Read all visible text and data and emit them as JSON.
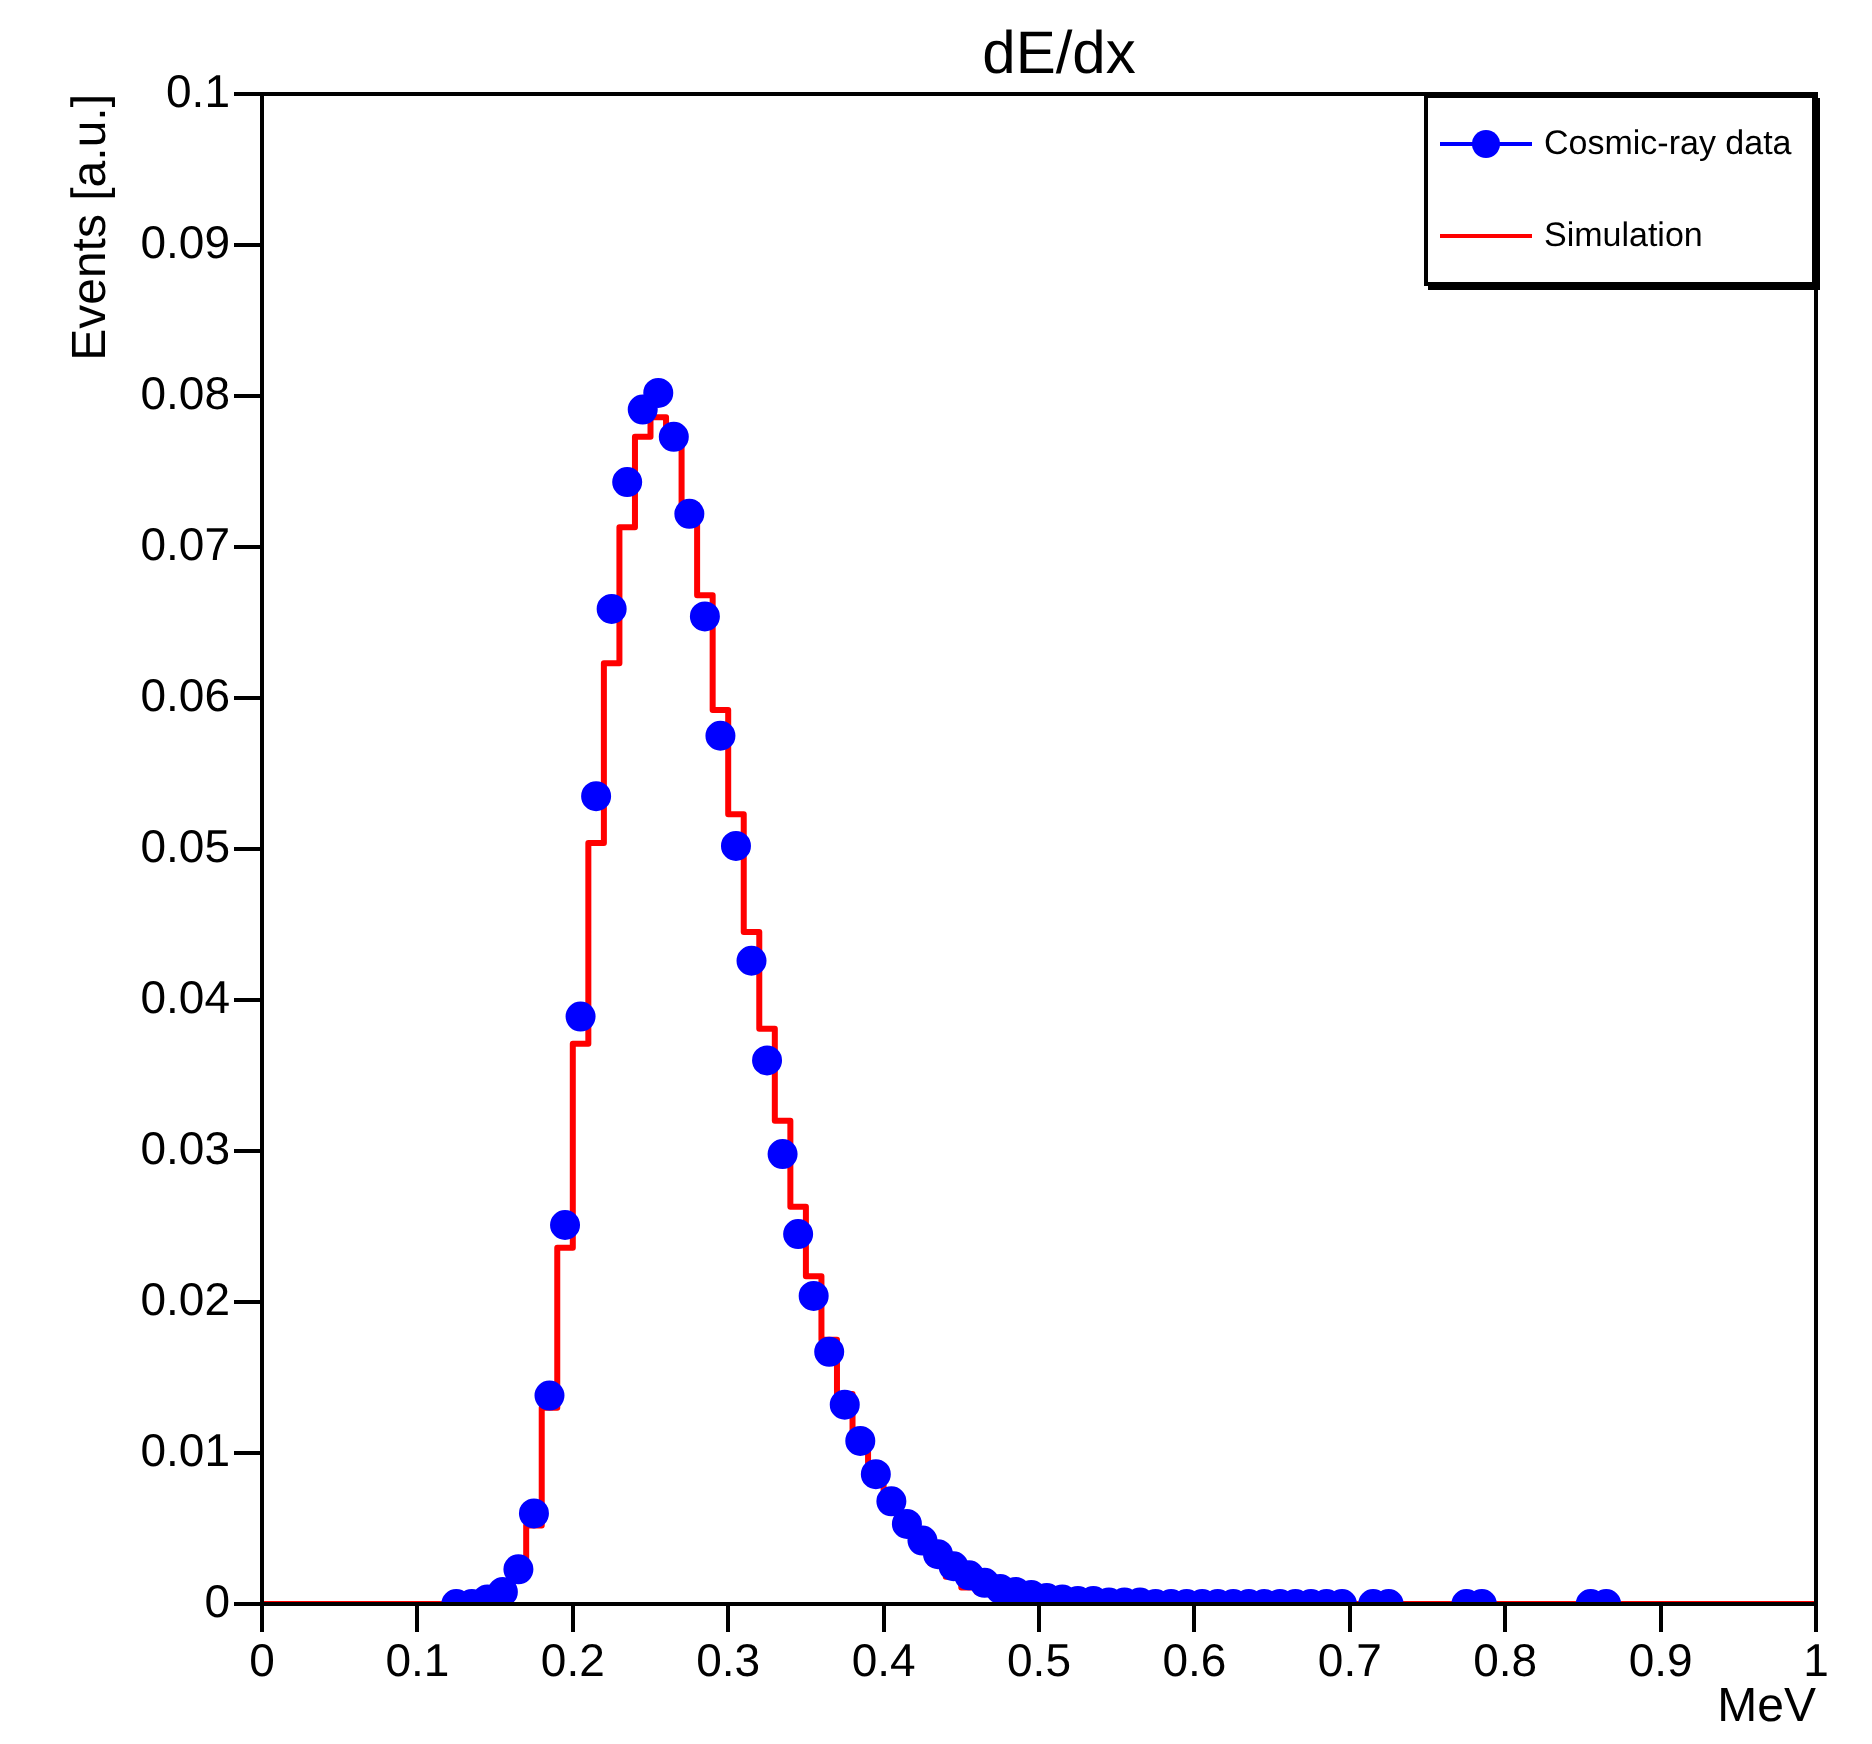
{
  "chart_data": {
    "type": "histogram",
    "title": "dE/dx",
    "xlabel": "MeV",
    "ylabel": "Events [a.u.]",
    "bins": [
      0,
      0.01,
      0.02,
      0.03,
      0.04,
      0.05,
      0.06,
      0.07,
      0.08,
      0.09,
      0.1,
      0.11,
      0.12,
      0.13,
      0.14,
      0.15,
      0.16,
      0.17,
      0.18,
      0.19,
      0.2,
      0.21,
      0.22,
      0.23,
      0.24,
      0.25,
      0.26,
      0.27,
      0.28,
      0.29,
      0.3,
      0.31,
      0.32,
      0.33,
      0.34,
      0.35,
      0.36,
      0.37,
      0.38,
      0.39,
      0.4,
      0.41,
      0.42,
      0.43,
      0.44,
      0.45,
      0.46,
      0.47,
      0.48,
      0.49,
      0.5,
      0.51,
      0.52,
      0.53,
      0.54,
      0.55,
      0.56,
      0.57,
      0.58,
      0.59,
      0.6,
      0.61,
      0.62,
      0.63,
      0.64,
      0.65,
      0.66,
      0.67,
      0.68,
      0.69,
      0.7,
      0.71,
      0.72,
      0.73,
      0.74,
      0.75,
      0.76,
      0.77,
      0.78,
      0.79,
      0.8,
      0.81,
      0.82,
      0.83,
      0.84,
      0.85,
      0.86,
      0.87,
      0.88,
      0.89,
      0.9,
      0.91,
      0.92,
      0.93,
      0.94,
      0.95,
      0.96,
      0.97,
      0.98,
      0.99,
      1
    ],
    "series": [
      {
        "name": "Cosmic-ray data",
        "type": "scatter",
        "color": "#0000ff",
        "marker": "circle",
        "x": [
          0.125,
          0.135,
          0.145,
          0.155,
          0.165,
          0.175,
          0.185,
          0.195,
          0.205,
          0.215,
          0.225,
          0.235,
          0.245,
          0.255,
          0.265,
          0.275,
          0.285,
          0.295,
          0.305,
          0.315,
          0.325,
          0.335,
          0.345,
          0.355,
          0.365,
          0.375,
          0.385,
          0.395,
          0.405,
          0.415,
          0.425,
          0.435,
          0.445,
          0.455,
          0.465,
          0.475,
          0.485,
          0.495,
          0.505,
          0.515,
          0.525,
          0.535,
          0.545,
          0.555,
          0.565,
          0.575,
          0.585,
          0.595,
          0.605,
          0.615,
          0.625,
          0.635,
          0.645,
          0.655,
          0.665,
          0.675,
          0.685,
          0.695,
          0.715,
          0.725,
          0.775,
          0.785,
          0.855,
          0.865
        ],
        "values": [
          0,
          0,
          0.0003,
          0.0008,
          0.0023,
          0.006,
          0.0138,
          0.0251,
          0.0389,
          0.0535,
          0.0659,
          0.0743,
          0.0791,
          0.0802,
          0.0773,
          0.0722,
          0.0654,
          0.0575,
          0.0502,
          0.0426,
          0.036,
          0.0298,
          0.0245,
          0.0204,
          0.0167,
          0.0132,
          0.0108,
          0.0086,
          0.0068,
          0.0053,
          0.0042,
          0.0033,
          0.0025,
          0.0019,
          0.0014,
          0.001,
          0.0008,
          0.0006,
          0.0004,
          0.0003,
          0.0002,
          0.0002,
          0.0001,
          0.0001,
          0.0001,
          0,
          0,
          0,
          0,
          0,
          0,
          0,
          0,
          0,
          0,
          0,
          0,
          0,
          0,
          0,
          0,
          0,
          0,
          0
        ]
      },
      {
        "name": "Simulation",
        "type": "histogram",
        "color": "#ff0000",
        "values": [
          0,
          0,
          0,
          0,
          0,
          0,
          0,
          0,
          0,
          0,
          0,
          0,
          0,
          0,
          0.0002,
          0.0005,
          0.002,
          0.0052,
          0.013,
          0.0236,
          0.0371,
          0.0504,
          0.0623,
          0.0713,
          0.0773,
          0.0786,
          0.0772,
          0.0728,
          0.0668,
          0.0592,
          0.0523,
          0.0445,
          0.0381,
          0.032,
          0.0263,
          0.0217,
          0.0175,
          0.0139,
          0.011,
          0.0086,
          0.007,
          0.0053,
          0.0039,
          0.0027,
          0.0018,
          0.0011,
          0.0008,
          0.0006,
          0.0004,
          0.0003,
          0.0002,
          0.0001,
          0.0001,
          0,
          0,
          0,
          0,
          0,
          0,
          0,
          0,
          0,
          0,
          0,
          0,
          0,
          0,
          0,
          0,
          0,
          0,
          0,
          0,
          0,
          0,
          0,
          0,
          0,
          0,
          0,
          0,
          0,
          0,
          0,
          0,
          0,
          0,
          0,
          0,
          0,
          0,
          0,
          0,
          0,
          0,
          0,
          0,
          0,
          0,
          0
        ]
      }
    ],
    "xlim": [
      0,
      1
    ],
    "xticks": [
      0,
      0.1,
      0.2,
      0.3,
      0.4,
      0.5,
      0.6,
      0.7,
      0.8,
      0.9,
      1
    ],
    "ylim": [
      0,
      0.1
    ],
    "yticks": [
      0,
      0.01,
      0.02,
      0.03,
      0.04,
      0.05,
      0.06,
      0.07,
      0.08,
      0.09,
      0.1
    ],
    "grid": false,
    "legend": "top right"
  }
}
